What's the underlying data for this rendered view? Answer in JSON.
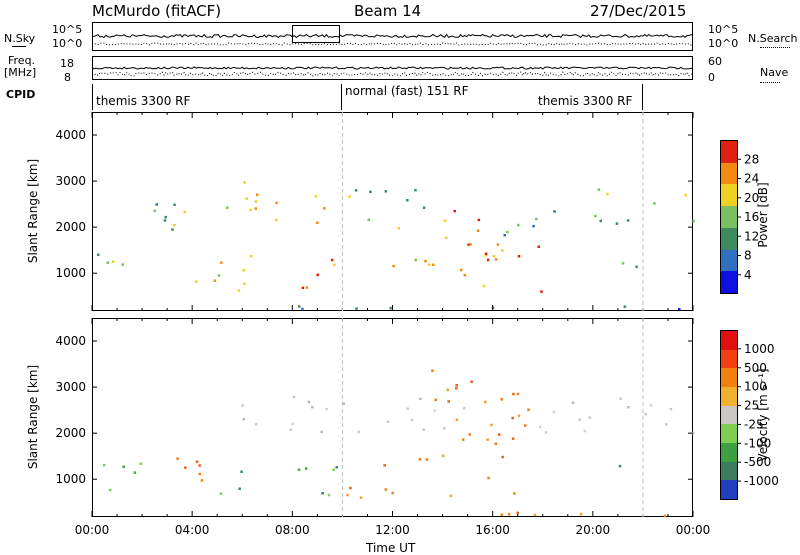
{
  "header": {
    "station": "McMurdo (fitACF)",
    "beam": "Beam 14",
    "date": "27/Dec/2015"
  },
  "side_labels": {
    "nsky": "N.Sky",
    "freq_top": "Freq.",
    "freq_unit": "[MHz]",
    "cpid": "CPID",
    "nsearch": "N.Search",
    "nave": "Nave"
  },
  "top_axes": {
    "nsky_ticks": [
      "10^5",
      "10^0"
    ],
    "nsearch_ticks": [
      "10^5",
      "10^0"
    ],
    "freq_ticks": [
      "18",
      "8"
    ],
    "nave_ticks": [
      "60",
      "0"
    ]
  },
  "cpid_segments": [
    {
      "label": "themis 3300 RF",
      "start_hour": 0,
      "end_hour": 10.0
    },
    {
      "label": "normal (fast) 151 RF",
      "start_hour": 10.0,
      "end_hour": 22.0
    },
    {
      "label": "themis 3300 RF",
      "start_hour": 22.0,
      "end_hour": 24
    }
  ],
  "time_axis": {
    "label": "Time UT",
    "ticks": [
      "00:00",
      "04:00",
      "08:00",
      "12:00",
      "16:00",
      "20:00",
      "00:00"
    ]
  },
  "chart_data": [
    {
      "type": "heatmap",
      "title": "Power",
      "ylabel": "Slant Range [km]",
      "xlabel": "",
      "yticks": [
        "1000",
        "2000",
        "3000",
        "4000"
      ],
      "ylim": [
        180,
        4500
      ],
      "colorbar": {
        "label": "Power [dB]",
        "ticks": [
          "4",
          "8",
          "12",
          "16",
          "20",
          "24",
          "28"
        ],
        "range": [
          0,
          30
        ],
        "colors": [
          "#1010e0",
          "#3070c0",
          "#3c8a60",
          "#7ac060",
          "#f0d020",
          "#f08a10",
          "#e02010"
        ]
      },
      "echo_regions": [
        {
          "x0": 0.2,
          "x1": 2.0,
          "y0": 600,
          "y1": 1500,
          "level": 3
        },
        {
          "x0": 0.2,
          "x1": 3.5,
          "y0": 2100,
          "y1": 2700,
          "level": 2
        },
        {
          "x0": 2.5,
          "x1": 4.5,
          "y0": 1900,
          "y1": 2400,
          "level": 3
        },
        {
          "x0": 4.0,
          "x1": 6.0,
          "y0": 600,
          "y1": 1500,
          "level": 4
        },
        {
          "x0": 5.0,
          "x1": 9.5,
          "y0": 2000,
          "y1": 3100,
          "level": 4
        },
        {
          "x0": 6.0,
          "x1": 10.0,
          "y0": 600,
          "y1": 1400,
          "level": 5
        },
        {
          "x0": 10.0,
          "x1": 14.5,
          "y0": 2000,
          "y1": 2900,
          "level": 3
        },
        {
          "x0": 11.5,
          "x1": 13.5,
          "y0": 600,
          "y1": 1400,
          "level": 4
        },
        {
          "x0": 13.5,
          "x1": 16.5,
          "y0": 700,
          "y1": 2400,
          "level": 5
        },
        {
          "x0": 15.5,
          "x1": 18.0,
          "y0": 600,
          "y1": 1700,
          "level": 5
        },
        {
          "x0": 16.0,
          "x1": 20.0,
          "y0": 1800,
          "y1": 2400,
          "level": 2
        },
        {
          "x0": 19.5,
          "x1": 24.0,
          "y0": 2100,
          "y1": 2900,
          "level": 3
        },
        {
          "x0": 20.5,
          "x1": 22.0,
          "y0": 900,
          "y1": 1300,
          "level": 2
        },
        {
          "x0": 0.0,
          "x1": 24.0,
          "y0": 200,
          "y1": 320,
          "level": 1
        }
      ]
    },
    {
      "type": "heatmap",
      "title": "Velocity",
      "ylabel": "Slant Range [km]",
      "xlabel": "Time UT",
      "yticks": [
        "1000",
        "2000",
        "3000",
        "4000"
      ],
      "ylim": [
        180,
        4500
      ],
      "colorbar": {
        "label": "Velocity [m s⁻¹]",
        "ticks": [
          "1000",
          "500",
          "100",
          "25",
          "-25",
          "-100",
          "-500",
          "-1000"
        ],
        "range": [
          -1200,
          1200
        ],
        "colors": [
          "#2040c0",
          "#3c7a60",
          "#3aa040",
          "#7ed050",
          "#c8c8c0",
          "#f0b030",
          "#f08010",
          "#f04010",
          "#e01010"
        ]
      },
      "echo_regions": [
        {
          "x0": 0.2,
          "x1": 2.5,
          "y0": 600,
          "y1": 1400,
          "level": "green"
        },
        {
          "x0": 2.5,
          "x1": 4.5,
          "y0": 1000,
          "y1": 2200,
          "level": "orange"
        },
        {
          "x0": 4.5,
          "x1": 6.0,
          "y0": 700,
          "y1": 1400,
          "level": "green"
        },
        {
          "x0": 5.5,
          "x1": 9.5,
          "y0": 2000,
          "y1": 3000,
          "level": "grey"
        },
        {
          "x0": 7.0,
          "x1": 10.0,
          "y0": 600,
          "y1": 1400,
          "level": "green"
        },
        {
          "x0": 10.0,
          "x1": 13.5,
          "y0": 600,
          "y1": 1500,
          "level": "orange"
        },
        {
          "x0": 10.0,
          "x1": 15.0,
          "y0": 2000,
          "y1": 2800,
          "level": "grey"
        },
        {
          "x0": 13.5,
          "x1": 17.5,
          "y0": 600,
          "y1": 3400,
          "level": "orange"
        },
        {
          "x0": 17.0,
          "x1": 24.0,
          "y0": 2000,
          "y1": 2800,
          "level": "grey"
        },
        {
          "x0": 20.5,
          "x1": 21.5,
          "y0": 1000,
          "y1": 1400,
          "level": "green"
        },
        {
          "x0": 0.0,
          "x1": 24.0,
          "y0": 200,
          "y1": 300,
          "level": "orange"
        }
      ]
    }
  ]
}
